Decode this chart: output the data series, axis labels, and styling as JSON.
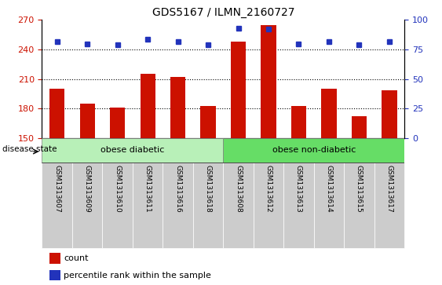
{
  "title": "GDS5167 / ILMN_2160727",
  "samples": [
    "GSM1313607",
    "GSM1313609",
    "GSM1313610",
    "GSM1313611",
    "GSM1313616",
    "GSM1313618",
    "GSM1313608",
    "GSM1313612",
    "GSM1313613",
    "GSM1313614",
    "GSM1313615",
    "GSM1313617"
  ],
  "counts": [
    200,
    185,
    181,
    215,
    212,
    183,
    248,
    265,
    183,
    200,
    172,
    199
  ],
  "percentile_ranks": [
    82,
    80,
    79,
    84,
    82,
    79,
    93,
    92,
    80,
    82,
    79,
    82
  ],
  "group_labels": [
    "obese diabetic",
    "obese non-diabetic"
  ],
  "group_spans": [
    6,
    6
  ],
  "ylim_left": [
    150,
    270
  ],
  "ylim_right": [
    0,
    100
  ],
  "yticks_left": [
    150,
    180,
    210,
    240,
    270
  ],
  "yticks_right": [
    0,
    25,
    50,
    75,
    100
  ],
  "bar_color": "#cc1100",
  "dot_color": "#2233bb",
  "group_color1": "#b8f0b8",
  "group_color2": "#66dd66",
  "bar_width": 0.5,
  "tick_bg_color": "#cccccc",
  "legend_items": [
    "count",
    "percentile rank within the sample"
  ],
  "legend_colors": [
    "#cc1100",
    "#2233bb"
  ],
  "disease_state_label": "disease state",
  "grid_values": [
    180,
    210,
    240
  ],
  "title_fontsize": 10
}
